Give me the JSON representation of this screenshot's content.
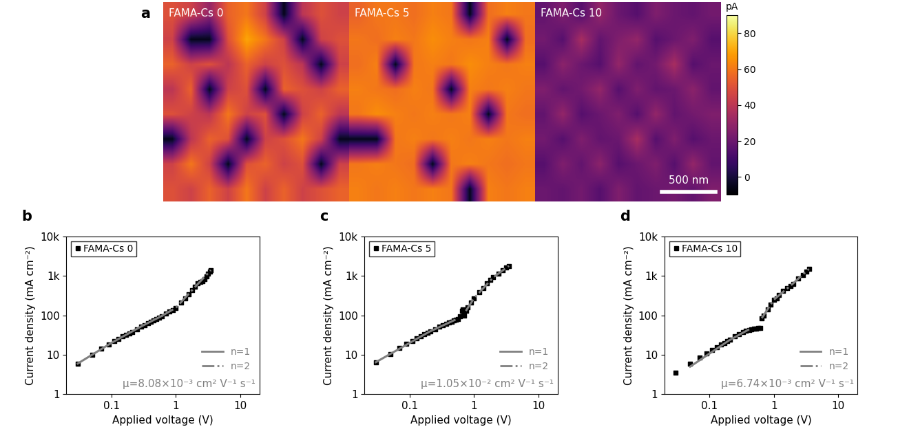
{
  "chart_data": [
    {
      "type": "heatmap",
      "panel": "a",
      "title": "FAMA-Cs 0",
      "cells": [
        [
          50,
          45,
          30,
          55,
          60,
          45,
          -5,
          40,
          50,
          45
        ],
        [
          45,
          -5,
          -5,
          50,
          70,
          60,
          45,
          -5,
          45,
          50
        ],
        [
          55,
          45,
          50,
          40,
          55,
          45,
          50,
          40,
          -5,
          45
        ],
        [
          40,
          55,
          -5,
          45,
          50,
          -5,
          55,
          50,
          45,
          55
        ],
        [
          50,
          45,
          40,
          60,
          45,
          50,
          -5,
          45,
          55,
          40
        ],
        [
          -5,
          40,
          55,
          50,
          -5,
          45,
          50,
          60,
          45,
          -5
        ],
        [
          45,
          60,
          45,
          -5,
          50,
          55,
          45,
          50,
          -5,
          45
        ],
        [
          50,
          45,
          55,
          45,
          60,
          45,
          55,
          45,
          50,
          55
        ]
      ]
    },
    {
      "type": "heatmap",
      "title": "FAMA-Cs 5",
      "cells": [
        [
          55,
          60,
          60,
          58,
          62,
          60,
          -5,
          58,
          62,
          60
        ],
        [
          60,
          58,
          62,
          60,
          65,
          62,
          60,
          62,
          -5,
          58
        ],
        [
          58,
          62,
          -5,
          60,
          62,
          60,
          65,
          62,
          60,
          62
        ],
        [
          62,
          60,
          58,
          62,
          60,
          -5,
          62,
          60,
          62,
          60
        ],
        [
          60,
          65,
          62,
          60,
          62,
          60,
          62,
          -5,
          60,
          58
        ],
        [
          -5,
          -5,
          60,
          62,
          60,
          62,
          60,
          62,
          60,
          62
        ],
        [
          60,
          62,
          60,
          58,
          -5,
          60,
          62,
          60,
          58,
          60
        ],
        [
          62,
          60,
          62,
          60,
          62,
          60,
          -5,
          62,
          60,
          62
        ]
      ]
    },
    {
      "type": "heatmap",
      "title": "FAMA-Cs 10",
      "scale_bar": "500 nm",
      "cells": [
        [
          18,
          25,
          15,
          30,
          20,
          15,
          25,
          20,
          18,
          22
        ],
        [
          22,
          15,
          35,
          18,
          25,
          30,
          15,
          20,
          25,
          15
        ],
        [
          15,
          28,
          20,
          15,
          30,
          18,
          22,
          35,
          15,
          20
        ],
        [
          25,
          18,
          22,
          30,
          15,
          25,
          18,
          20,
          28,
          18
        ],
        [
          18,
          30,
          15,
          20,
          25,
          15,
          30,
          18,
          22,
          25
        ],
        [
          22,
          15,
          25,
          18,
          20,
          35,
          15,
          25,
          15,
          20
        ],
        [
          15,
          25,
          18,
          28,
          15,
          20,
          25,
          15,
          30,
          18
        ],
        [
          20,
          18,
          22,
          15,
          25,
          18,
          20,
          22,
          18,
          25
        ]
      ],
      "colorbar": {
        "label": "pA",
        "range": [
          -10,
          90
        ],
        "ticks": [
          0,
          20,
          40,
          60,
          80
        ]
      }
    },
    {
      "type": "scatter",
      "panel": "b",
      "log": true,
      "x_label": "Applied voltage (V)",
      "y_label": "Current density (mA cm⁻²)",
      "xlim": [
        0.02,
        20
      ],
      "ylim": [
        1,
        10000
      ],
      "xticks": [
        0.1,
        1,
        10
      ],
      "yticks": [
        1,
        10,
        100,
        {
          "value": 1000,
          "label": "1k"
        },
        {
          "value": 10000,
          "label": "10k"
        }
      ],
      "annotation": "μ=8.08×10⁻³ cm² V⁻¹ s⁻¹",
      "series": [
        {
          "name": "FAMA-Cs 0",
          "type": "scatter",
          "color": "#000000",
          "marker": "square",
          "legend": "upper left",
          "x": [
            0.03,
            0.05,
            0.07,
            0.09,
            0.11,
            0.13,
            0.15,
            0.17,
            0.19,
            0.21,
            0.25,
            0.29,
            0.33,
            0.37,
            0.41,
            0.45,
            0.5,
            0.55,
            0.6,
            0.7,
            0.8,
            0.9,
            1.0,
            1.2,
            1.4,
            1.6,
            1.8,
            2.0,
            2.2,
            2.4,
            2.6,
            2.8,
            3.0,
            3.2,
            3.4,
            3.5
          ],
          "values": [
            6,
            10,
            14.5,
            18.5,
            22,
            25.5,
            29,
            32,
            35,
            38,
            45,
            51,
            57,
            63,
            69,
            75,
            82,
            89,
            96,
            110,
            124,
            138,
            155,
            210,
            270,
            340,
            430,
            530,
            650,
            700,
            720,
            820,
            960,
            1120,
            1300,
            1400
          ]
        },
        {
          "name": "n=1",
          "type": "line",
          "color": "#808080",
          "line_style": "solid",
          "legend": "lower right",
          "x": [
            0.03,
            0.1,
            0.3,
            0.6
          ],
          "values": [
            6,
            20,
            54,
            96
          ]
        },
        {
          "name": "n=2",
          "type": "line",
          "color": "#808080",
          "line_style": "dashdot",
          "legend": "lower right",
          "x": [
            0.6,
            1.0,
            2.0,
            3.5
          ],
          "values": [
            96,
            155,
            530,
            1400
          ]
        }
      ]
    },
    {
      "type": "scatter",
      "panel": "c",
      "log": true,
      "x_label": "Applied voltage (V)",
      "y_label": "Current density (mA cm⁻²)",
      "xlim": [
        0.02,
        20
      ],
      "ylim": [
        1,
        10000
      ],
      "xticks": [
        0.1,
        1,
        10
      ],
      "yticks": [
        1,
        10,
        100,
        {
          "value": 1000,
          "label": "1k"
        },
        {
          "value": 10000,
          "label": "10k"
        }
      ],
      "annotation": "μ=1.05×10⁻² cm² V⁻¹ s⁻¹",
      "series": [
        {
          "name": "FAMA-Cs 5",
          "type": "scatter",
          "color": "#000000",
          "marker": "square",
          "legend": "upper left",
          "x": [
            0.03,
            0.05,
            0.07,
            0.09,
            0.11,
            0.13,
            0.15,
            0.17,
            0.19,
            0.21,
            0.25,
            0.29,
            0.33,
            0.37,
            0.41,
            0.45,
            0.49,
            0.53,
            0.57,
            0.61,
            0.65,
            0.67,
            0.69,
            0.71,
            0.75,
            0.8,
            0.9,
            1.0,
            1.2,
            1.4,
            1.6,
            1.8,
            2.0,
            2.4,
            2.8,
            3.2,
            3.5
          ],
          "values": [
            6.5,
            10.5,
            15,
            19,
            22,
            26,
            29,
            33,
            36,
            39,
            45,
            51,
            56,
            61,
            66,
            70,
            74,
            77,
            80,
            95,
            130,
            140,
            115,
            100,
            130,
            160,
            210,
            270,
            380,
            500,
            640,
            780,
            920,
            1150,
            1400,
            1650,
            1800
          ]
        },
        {
          "name": "n=1",
          "type": "line",
          "color": "#808080",
          "line_style": "solid",
          "legend": "lower right",
          "x": [
            0.03,
            0.2,
            0.5
          ],
          "values": [
            6.5,
            38,
            76
          ]
        },
        {
          "name": "n=2",
          "type": "line",
          "color": "#808080",
          "line_style": "dashdot",
          "legend": "lower right",
          "x": [
            0.75,
            1.0,
            2.0,
            3.5
          ],
          "values": [
            130,
            270,
            920,
            1800
          ]
        }
      ]
    },
    {
      "type": "scatter",
      "panel": "d",
      "log": true,
      "x_label": "Applied voltage (V)",
      "y_label": "Current density (mA cm⁻²)",
      "xlim": [
        0.02,
        20
      ],
      "ylim": [
        1,
        10000
      ],
      "xticks": [
        0.1,
        1,
        10
      ],
      "yticks": [
        1,
        10,
        100,
        {
          "value": 1000,
          "label": "1k"
        },
        {
          "value": 10000,
          "label": "10k"
        }
      ],
      "annotation": "μ=6.74×10⁻³ cm² V⁻¹ s⁻¹",
      "series": [
        {
          "name": "FAMA-Cs 10",
          "type": "scatter",
          "color": "#000000",
          "marker": "square",
          "legend": "upper left",
          "x": [
            0.03,
            0.05,
            0.07,
            0.09,
            0.11,
            0.13,
            0.15,
            0.17,
            0.19,
            0.21,
            0.25,
            0.29,
            0.33,
            0.37,
            0.41,
            0.45,
            0.49,
            0.53,
            0.57,
            0.61,
            0.65,
            0.7,
            0.8,
            0.9,
            1.0,
            1.1,
            1.2,
            1.4,
            1.6,
            1.8,
            2.0,
            2.4,
            2.8,
            3.2,
            3.5
          ],
          "values": [
            3.5,
            6,
            8.5,
            11,
            13,
            15.5,
            18,
            20,
            22,
            24.5,
            29,
            33,
            38,
            41,
            43,
            45,
            46,
            46.5,
            47,
            47,
            85,
            100,
            140,
            190,
            250,
            270,
            330,
            420,
            500,
            560,
            620,
            850,
            1050,
            1300,
            1500
          ]
        },
        {
          "name": "n=1",
          "type": "line",
          "color": "#808080",
          "line_style": "solid",
          "legend": "lower right",
          "x": [
            0.05,
            0.2,
            0.4
          ],
          "values": [
            5,
            23,
            43
          ]
        },
        {
          "name": "n=2",
          "type": "line",
          "color": "#808080",
          "line_style": "dashdot",
          "legend": "lower right",
          "x": [
            0.65,
            1.0,
            2.0,
            3.5
          ],
          "values": [
            85,
            250,
            650,
            1500
          ]
        }
      ]
    }
  ]
}
